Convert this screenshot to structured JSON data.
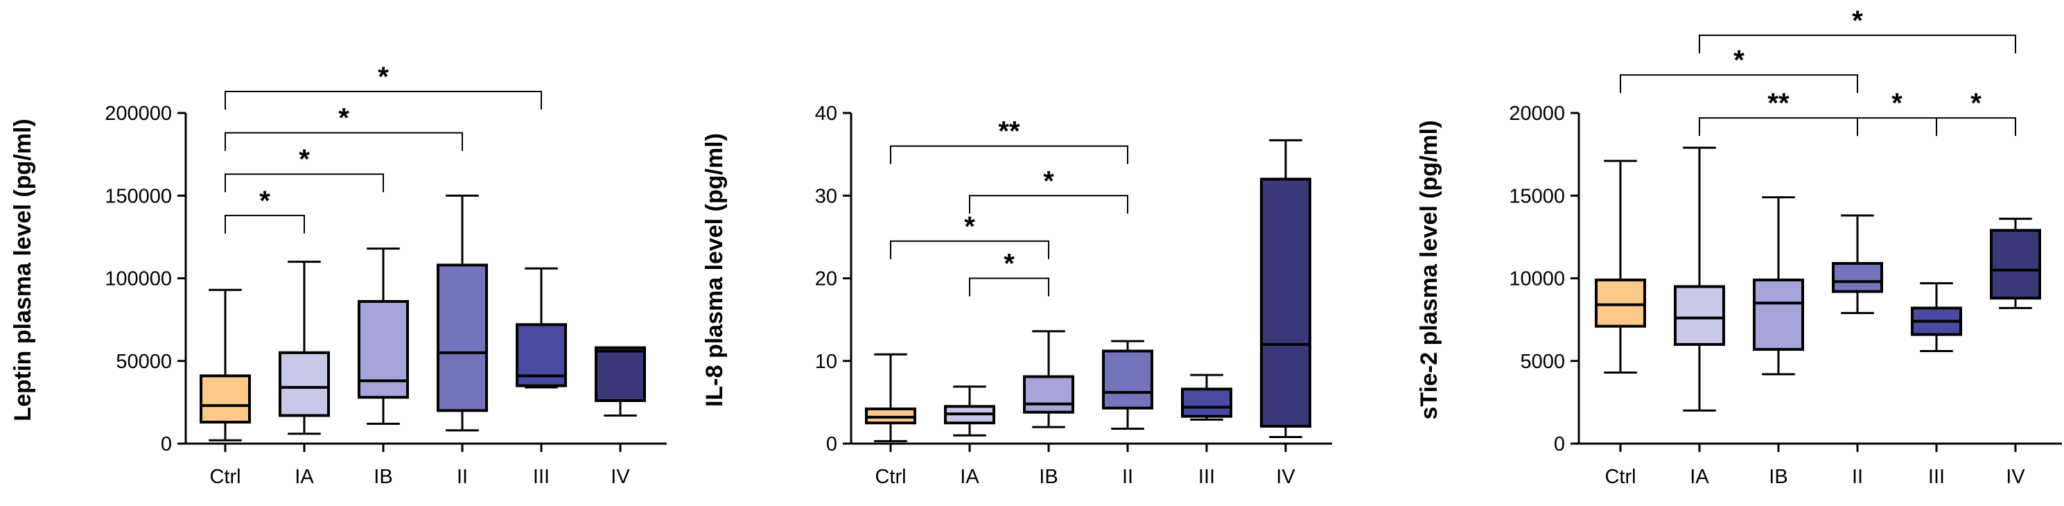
{
  "chart_data": [
    {
      "type": "box",
      "ylabel": "Leptin plasma level (pg/ml)",
      "ylim": [
        0,
        200000
      ],
      "yticks": [
        0,
        50000,
        100000,
        150000,
        200000
      ],
      "ytick_labels": [
        "0",
        "50000",
        "100000",
        "150000",
        "200000"
      ],
      "categories": [
        "Ctrl",
        "IA",
        "IB",
        "II",
        "III",
        "IV"
      ],
      "colors": [
        "#fcc98a",
        "#c8c8ea",
        "#a5a5d9",
        "#7474bd",
        "#4a4aa0",
        "#39397a"
      ],
      "boxes": [
        {
          "min": 2000,
          "q1": 13000,
          "median": 23000,
          "q3": 41000,
          "max": 93000
        },
        {
          "min": 6000,
          "q1": 17000,
          "median": 34000,
          "q3": 55000,
          "max": 110000
        },
        {
          "min": 12000,
          "q1": 28000,
          "median": 38000,
          "q3": 86000,
          "max": 118000
        },
        {
          "min": 8000,
          "q1": 20000,
          "median": 55000,
          "q3": 108000,
          "max": 150000
        },
        {
          "min": 34000,
          "q1": 35000,
          "median": 41000,
          "q3": 72000,
          "max": 106000
        },
        {
          "min": 17000,
          "q1": 26000,
          "median": 56000,
          "q3": 58000,
          "max": 58000
        }
      ],
      "significance": [
        {
          "from": 0,
          "to": 1,
          "label": "*",
          "level": 138000
        },
        {
          "from": 0,
          "to": 2,
          "label": "*",
          "level": 163000
        },
        {
          "from": 0,
          "to": 3,
          "label": "*",
          "level": 188000
        },
        {
          "from": 0,
          "to": 4,
          "label": "*",
          "level": 213000
        }
      ]
    },
    {
      "type": "box",
      "ylabel": "IL-8 plasma level (pg/ml)",
      "ylim": [
        0,
        40
      ],
      "yticks": [
        0,
        10,
        20,
        30,
        40
      ],
      "ytick_labels": [
        "0",
        "10",
        "20",
        "30",
        "40"
      ],
      "categories": [
        "Ctrl",
        "IA",
        "IB",
        "II",
        "III",
        "IV"
      ],
      "colors": [
        "#fcc98a",
        "#c8c8ea",
        "#a5a5d9",
        "#7474bd",
        "#4a4aa0",
        "#39397a"
      ],
      "boxes": [
        {
          "min": 0.3,
          "q1": 2.5,
          "median": 3.2,
          "q3": 4.2,
          "max": 10.8
        },
        {
          "min": 1.0,
          "q1": 2.5,
          "median": 3.6,
          "q3": 4.5,
          "max": 6.9
        },
        {
          "min": 2.0,
          "q1": 3.8,
          "median": 4.8,
          "q3": 8.1,
          "max": 13.6
        },
        {
          "min": 1.8,
          "q1": 4.3,
          "median": 6.2,
          "q3": 11.2,
          "max": 12.4
        },
        {
          "min": 2.9,
          "q1": 3.3,
          "median": 4.4,
          "q3": 6.6,
          "max": 8.3
        },
        {
          "min": 0.8,
          "q1": 2.1,
          "median": 12.0,
          "q3": 32.0,
          "max": 36.7
        }
      ],
      "significance": [
        {
          "from": 1,
          "to": 2,
          "label": "*",
          "level": 20.0
        },
        {
          "from": 0,
          "to": 2,
          "label": "*",
          "level": 24.5
        },
        {
          "from": 1,
          "to": 3,
          "label": "*",
          "level": 30.0
        },
        {
          "from": 0,
          "to": 3,
          "label": "**",
          "level": 36.0
        }
      ]
    },
    {
      "type": "box",
      "ylabel": "sTie-2 plasma level (pg/ml)",
      "ylim": [
        0,
        20000
      ],
      "yticks": [
        0,
        5000,
        10000,
        15000,
        20000
      ],
      "ytick_labels": [
        "0",
        "5000",
        "10000",
        "15000",
        "20000"
      ],
      "categories": [
        "Ctrl",
        "IA",
        "IB",
        "II",
        "III",
        "IV"
      ],
      "colors": [
        "#fcc98a",
        "#c8c8ea",
        "#a5a5d9",
        "#7474bd",
        "#4a4aa0",
        "#39397a"
      ],
      "boxes": [
        {
          "min": 4300,
          "q1": 7100,
          "median": 8400,
          "q3": 9900,
          "max": 17100
        },
        {
          "min": 2000,
          "q1": 6000,
          "median": 7600,
          "q3": 9500,
          "max": 17900
        },
        {
          "min": 4200,
          "q1": 5700,
          "median": 8500,
          "q3": 9900,
          "max": 14900
        },
        {
          "min": 7900,
          "q1": 9200,
          "median": 9800,
          "q3": 10900,
          "max": 13800
        },
        {
          "min": 5600,
          "q1": 6600,
          "median": 7400,
          "q3": 8200,
          "max": 9700
        },
        {
          "min": 8200,
          "q1": 8800,
          "median": 10500,
          "q3": 12900,
          "max": 13600
        }
      ],
      "significance": [
        {
          "from": 1,
          "to": 3,
          "label": "**",
          "level": 19700
        },
        {
          "from": 3,
          "to": 4,
          "label": "*",
          "level": 19700
        },
        {
          "from": 4,
          "to": 5,
          "label": "*",
          "level": 19700
        },
        {
          "from": 0,
          "to": 3,
          "label": "*",
          "level": 22300
        },
        {
          "from": 1,
          "to": 5,
          "label": "*",
          "level": 24700
        }
      ]
    }
  ]
}
